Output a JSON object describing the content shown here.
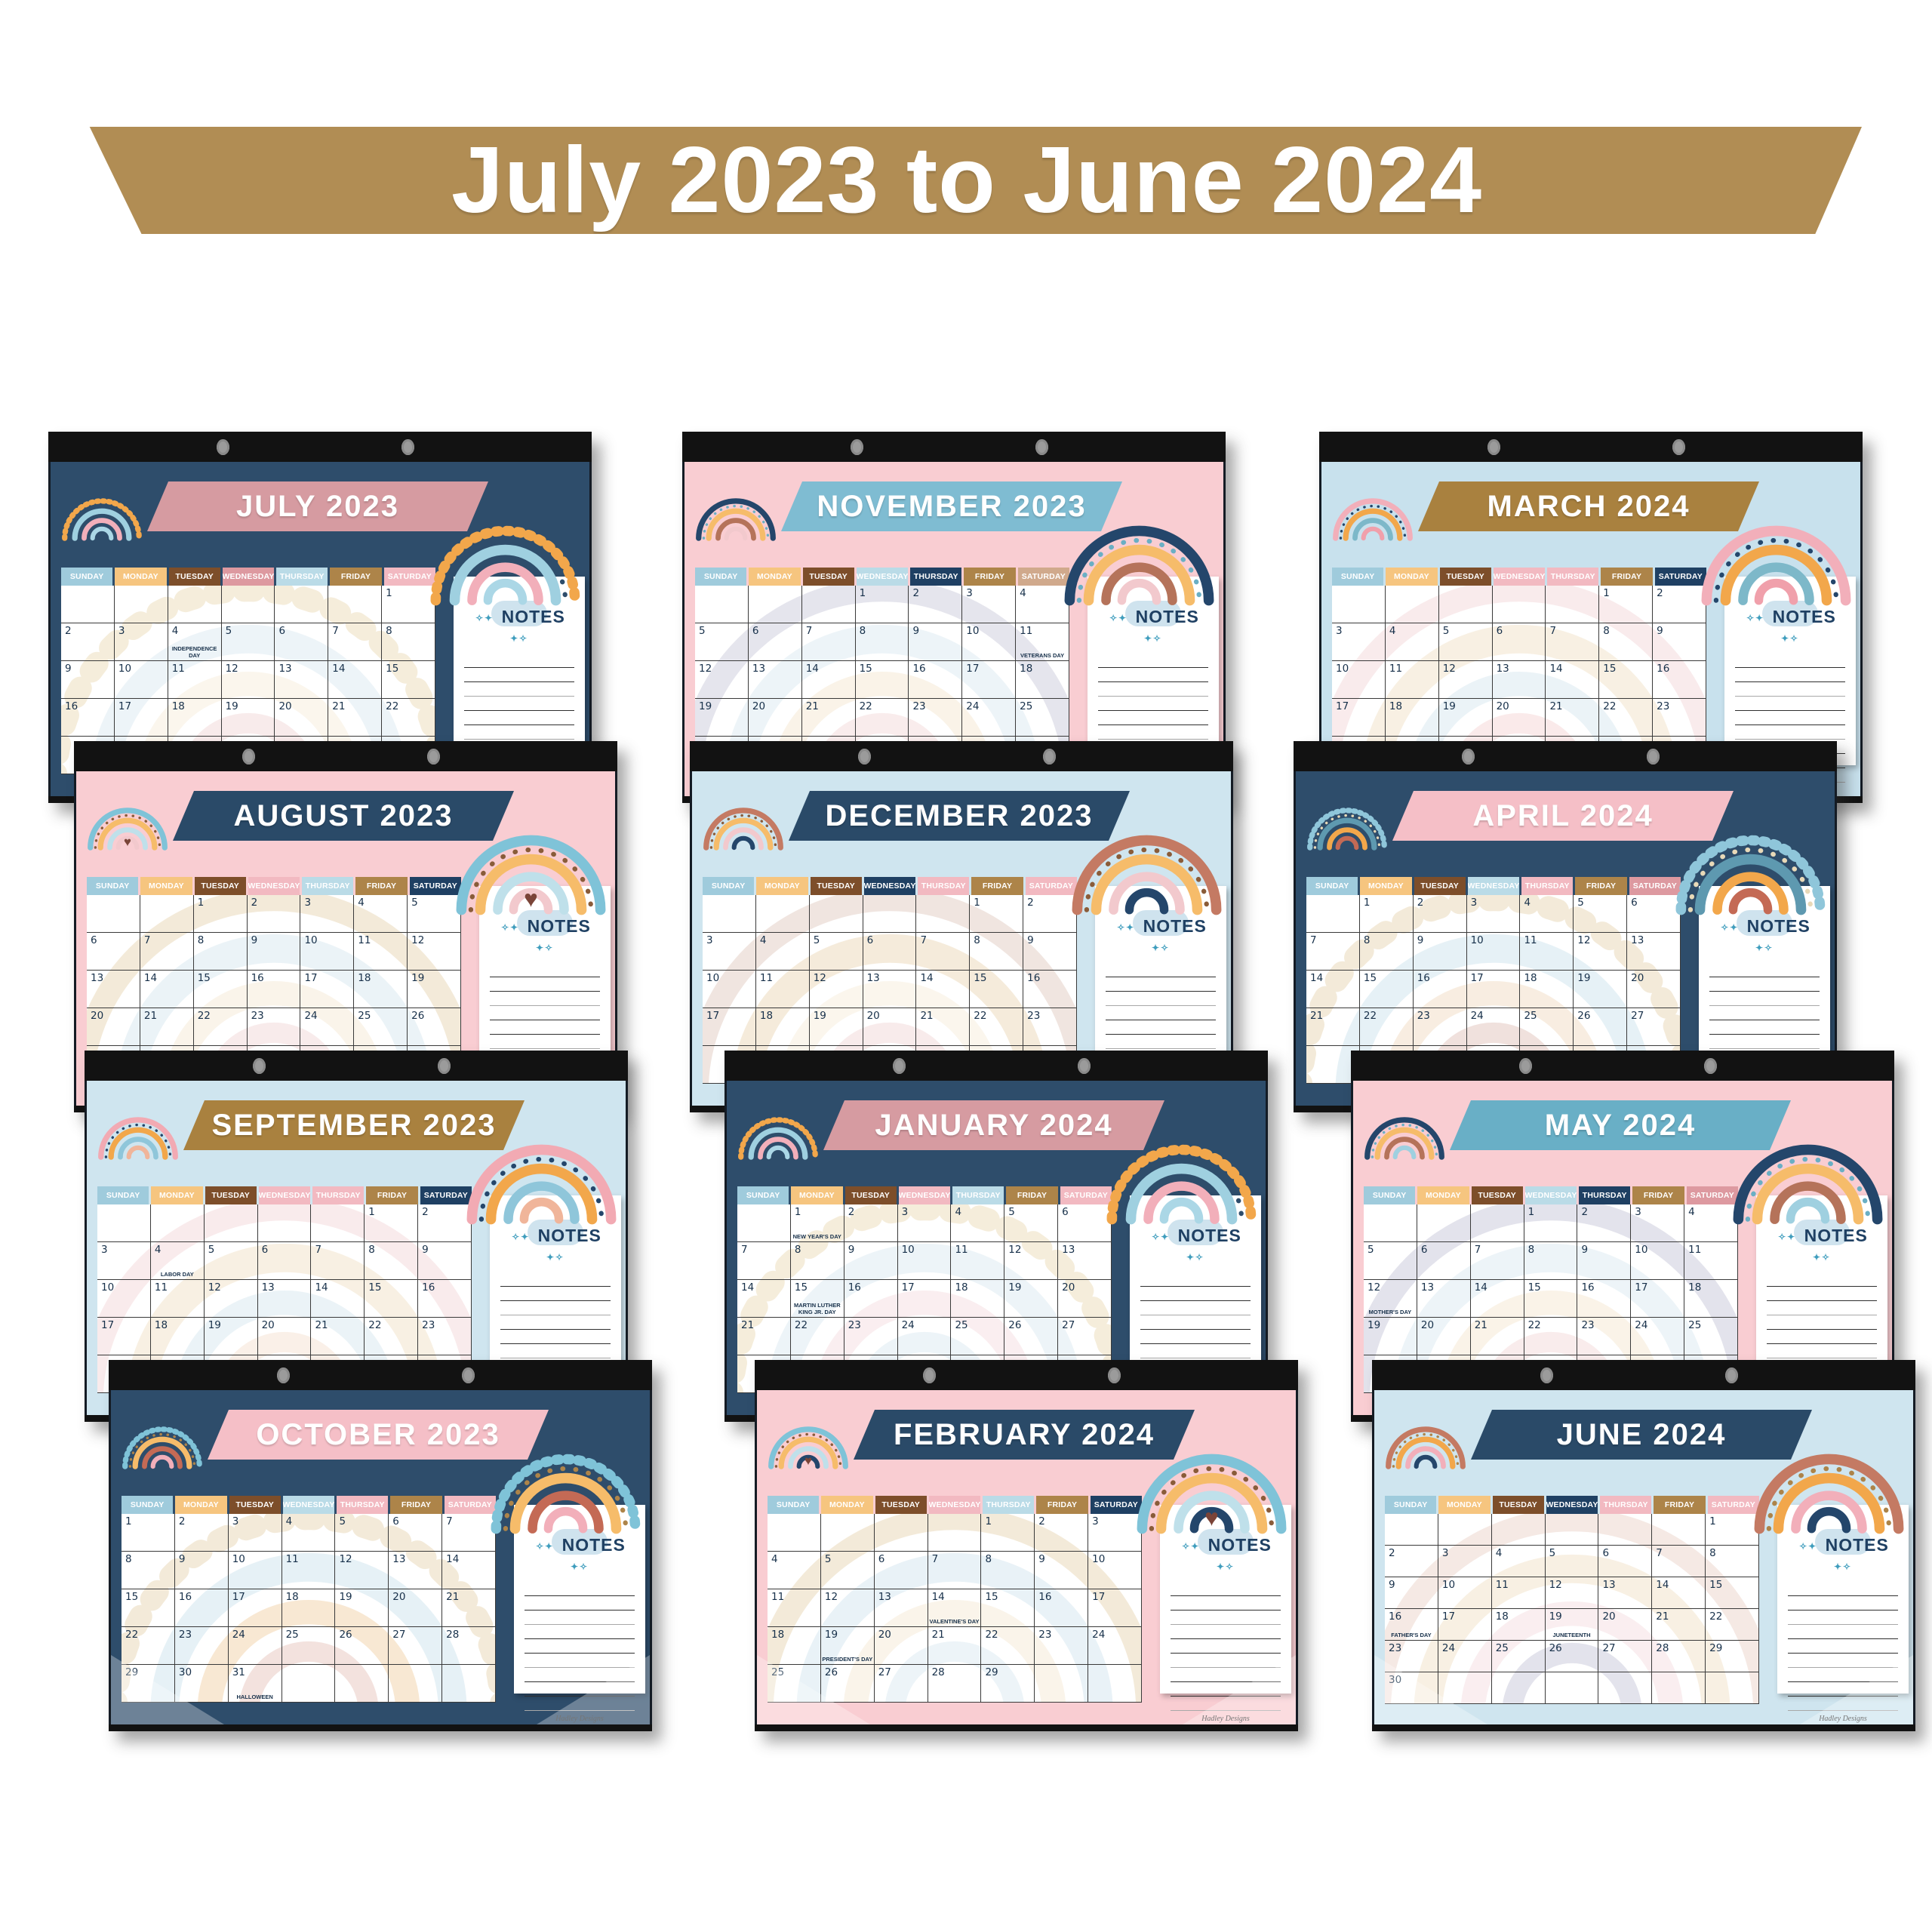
{
  "banner": {
    "text": "July 2023 to June 2024",
    "bg": "#b18d54",
    "text_color": "#ffffff"
  },
  "day_labels": [
    "SUNDAY",
    "MONDAY",
    "TUESDAY",
    "WEDNESDAY",
    "THURSDAY",
    "FRIDAY",
    "SATURDAY"
  ],
  "notes_label": "NOTES",
  "brand": "Hadley Designs",
  "icons": {
    "sparkles_left": "✧✦",
    "sparkles_right": "✦✧",
    "grommet": "binder-grommet",
    "heart": "♥"
  },
  "colors": {
    "navy_bg": "#2e4d6b",
    "pink_bg": "#f9cdd2",
    "blue_bg": "#cfe5ef",
    "strip": "#121212",
    "grid_line": "#3a3a3a",
    "date_text": "#17304a",
    "notes_text": "#1f4063"
  },
  "calendars": [
    {
      "id": "july-2023",
      "title": "JULY 2023",
      "row": 0,
      "col": 0,
      "bg": "#2e4d6b",
      "banner_bg": "#d69ba1",
      "header_colors": [
        "#9fcbdc",
        "#f6c57f",
        "#7d4e2a",
        "#dd99a0",
        "#badbe7",
        "#ad8449",
        "#f2b9c1"
      ],
      "rainbow": {
        "outer": "#f2a74b",
        "a2": "#9fd0e0",
        "a3": "#f2afba",
        "a4": "#abd7e6",
        "dots": "#2e4d6b",
        "dash": true,
        "heart": null
      },
      "watermark": [
        "#ecdcb9",
        "#dceaf2",
        "#f8eedd",
        "#f3d9d9"
      ],
      "weeks": [
        [
          "",
          "",
          "",
          "",
          "",
          "",
          "1"
        ],
        [
          "2",
          "3",
          "4",
          "5",
          "6",
          "7",
          "8"
        ],
        [
          "9",
          "10",
          "11",
          "12",
          "13",
          "14",
          "15"
        ],
        [
          "16",
          "17",
          "18",
          "19",
          "20",
          "21",
          "22"
        ]
      ],
      "holidays": {
        "4": "INDEPENDENCE DAY"
      },
      "full": false,
      "six": false
    },
    {
      "id": "november-2023",
      "title": "NOVEMBER 2023",
      "row": 0,
      "col": 1,
      "bg": "#f9cdd2",
      "banner_bg": "#7fbcd2",
      "header_colors": [
        "#9fcbdc",
        "#f6c57f",
        "#7d4e2a",
        "#badbe7",
        "#1f4063",
        "#ad8449",
        "#d0a98c"
      ],
      "rainbow": {
        "outer": "#24466b",
        "a2": "#f6bc6a",
        "a3": "#b5735a",
        "a4": "#f2c9cd",
        "dots": "#6aafc4",
        "dash": false,
        "heart": null
      },
      "watermark": [
        "#cdccdc",
        "#dcebf3",
        "#f6e8d2",
        "#f5dada"
      ],
      "weeks": [
        [
          "",
          "",
          "",
          "1",
          "2",
          "3",
          "4"
        ],
        [
          "5",
          "6",
          "7",
          "8",
          "9",
          "10",
          "11"
        ],
        [
          "12",
          "13",
          "14",
          "15",
          "16",
          "17",
          "18"
        ],
        [
          "19",
          "20",
          "21",
          "22",
          "23",
          "24",
          "25"
        ]
      ],
      "holidays": {
        "11": "VETERANS DAY"
      },
      "full": false,
      "six": false
    },
    {
      "id": "march-2024",
      "title": "MARCH 2024",
      "row": 0,
      "col": 2,
      "bg": "#c8e1ed",
      "banner_bg": "#a9813f",
      "header_colors": [
        "#9fcbdc",
        "#f6c57f",
        "#7d4e2a",
        "#f2b9c1",
        "#f2b9c1",
        "#ad8449",
        "#1f4063"
      ],
      "rainbow": {
        "outer": "#f2afba",
        "a2": "#f2a74b",
        "a3": "#7db8c9",
        "a4": "#f0a0ab",
        "dots": "#24466b",
        "dash": false,
        "heart": null
      },
      "watermark": [
        "#f5d8da",
        "#f3e3c8",
        "#d9e9f1",
        "#f7d7d7"
      ],
      "weeks": [
        [
          "",
          "",
          "",
          "",
          "",
          "1",
          "2"
        ],
        [
          "3",
          "4",
          "5",
          "6",
          "7",
          "8",
          "9"
        ],
        [
          "10",
          "11",
          "12",
          "13",
          "14",
          "15",
          "16"
        ],
        [
          "17",
          "18",
          "19",
          "20",
          "21",
          "22",
          "23"
        ]
      ],
      "holidays": {},
      "full": false,
      "six": false
    },
    {
      "id": "august-2023",
      "title": "AUGUST 2023",
      "row": 1,
      "col": 0,
      "bg": "#f9cdd2",
      "banner_bg": "#2a4a68",
      "header_colors": [
        "#9fcbdc",
        "#f6c57f",
        "#7d4e2a",
        "#f2b9c1",
        "#badbe7",
        "#ad8449",
        "#1f4063"
      ],
      "rainbow": {
        "outer": "#7fc3d8",
        "a2": "#f6bc6a",
        "a3": "#bfe0ea",
        "a4": "#f2c9cd",
        "dots": "#8a5c39",
        "dash": false,
        "heart": "#7a4438"
      },
      "watermark": [
        "#e9d7b4",
        "#d9e9f1",
        "#f7ead6",
        "#f3d9d9"
      ],
      "weeks": [
        [
          "",
          "",
          "1",
          "2",
          "3",
          "4",
          "5"
        ],
        [
          "6",
          "7",
          "8",
          "9",
          "10",
          "11",
          "12"
        ],
        [
          "13",
          "14",
          "15",
          "16",
          "17",
          "18",
          "19"
        ],
        [
          "20",
          "21",
          "22",
          "23",
          "24",
          "25",
          "26"
        ]
      ],
      "holidays": {},
      "full": false,
      "six": false
    },
    {
      "id": "december-2023",
      "title": "DECEMBER 2023",
      "row": 1,
      "col": 1,
      "bg": "#cfe5ef",
      "banner_bg": "#2a4a68",
      "header_colors": [
        "#9fcbdc",
        "#f6c57f",
        "#7d4e2a",
        "#1f4063",
        "#f2b9c1",
        "#ad8449",
        "#f2b9c1"
      ],
      "rainbow": {
        "outer": "#c47a63",
        "a2": "#f6bc6a",
        "a3": "#f2c9cd",
        "a4": "#24466b",
        "dots": "#8a5c39",
        "dash": false,
        "heart": null
      },
      "watermark": [
        "#e3cdc3",
        "#ecd9b8",
        "#f8eedd",
        "#f3d9d9"
      ],
      "weeks": [
        [
          "",
          "",
          "",
          "",
          "",
          "1",
          "2"
        ],
        [
          "3",
          "4",
          "5",
          "6",
          "7",
          "8",
          "9"
        ],
        [
          "10",
          "11",
          "12",
          "13",
          "14",
          "15",
          "16"
        ],
        [
          "17",
          "18",
          "19",
          "20",
          "21",
          "22",
          "23"
        ]
      ],
      "holidays": {},
      "full": false,
      "six": false
    },
    {
      "id": "april-2024",
      "title": "APRIL 2024",
      "row": 1,
      "col": 2,
      "bg": "#2e4d6b",
      "banner_bg": "#f5bfc7",
      "header_colors": [
        "#9fcbdc",
        "#f6c57f",
        "#7d4e2a",
        "#badbe7",
        "#f2b9c1",
        "#ad8449",
        "#dd99a0"
      ],
      "rainbow": {
        "outer": "#8fc6da",
        "a2": "#5e99b0",
        "a3": "#f2a74b",
        "a4": "#c46a55",
        "dots": "#e8d9b8",
        "dash": true,
        "heart": null
      },
      "watermark": [
        "#e9d7b4",
        "#cfe4ee",
        "#f3ddc4",
        "#e3c4bc"
      ],
      "weeks": [
        [
          "",
          "1",
          "2",
          "3",
          "4",
          "5",
          "6"
        ],
        [
          "7",
          "8",
          "9",
          "10",
          "11",
          "12",
          "13"
        ],
        [
          "14",
          "15",
          "16",
          "17",
          "18",
          "19",
          "20"
        ],
        [
          "21",
          "22",
          "23",
          "24",
          "25",
          "26",
          "27"
        ]
      ],
      "holidays": {},
      "full": false,
      "six": false
    },
    {
      "id": "september-2023",
      "title": "SEPTEMBER 2023",
      "row": 2,
      "col": 0,
      "bg": "#cfe5ef",
      "banner_bg": "#a9813f",
      "header_colors": [
        "#9fcbdc",
        "#f6c57f",
        "#7d4e2a",
        "#f2b9c1",
        "#f2b9c1",
        "#ad8449",
        "#1f4063"
      ],
      "rainbow": {
        "outer": "#f2aab3",
        "a2": "#f2a74b",
        "a3": "#8fc6da",
        "a4": "#f0b59a",
        "dots": "#24466b",
        "dash": false,
        "heart": null
      },
      "watermark": [
        "#f5d8da",
        "#f3e3c8",
        "#d9e9f1",
        "#f7e3d3"
      ],
      "weeks": [
        [
          "",
          "",
          "",
          "",
          "",
          "1",
          "2"
        ],
        [
          "3",
          "4",
          "5",
          "6",
          "7",
          "8",
          "9"
        ],
        [
          "10",
          "11",
          "12",
          "13",
          "14",
          "15",
          "16"
        ],
        [
          "17",
          "18",
          "19",
          "20",
          "21",
          "22",
          "23"
        ]
      ],
      "holidays": {
        "4": "LABOR DAY"
      },
      "full": false,
      "six": false
    },
    {
      "id": "january-2024",
      "title": "JANUARY 2024",
      "row": 2,
      "col": 1,
      "bg": "#2e4d6b",
      "banner_bg": "#d69ba1",
      "header_colors": [
        "#9fcbdc",
        "#f6c57f",
        "#7d4e2a",
        "#f2b9c1",
        "#badbe7",
        "#ad8449",
        "#f2b9c1"
      ],
      "rainbow": {
        "outer": "#f2a74b",
        "a2": "#9fd0e0",
        "a3": "#f2afba",
        "a4": "#abd7e6",
        "dots": "#2e4d6b",
        "dash": true,
        "heart": null
      },
      "watermark": [
        "#ecdcb9",
        "#dceaf2",
        "#f6dfe2",
        "#dcebf3"
      ],
      "weeks": [
        [
          "",
          "1",
          "2",
          "3",
          "4",
          "5",
          "6"
        ],
        [
          "7",
          "8",
          "9",
          "10",
          "11",
          "12",
          "13"
        ],
        [
          "14",
          "15",
          "16",
          "17",
          "18",
          "19",
          "20"
        ],
        [
          "21",
          "22",
          "23",
          "24",
          "25",
          "26",
          "27"
        ]
      ],
      "holidays": {
        "1": "NEW YEAR'S DAY",
        "15": "MARTIN LUTHER KING JR. DAY"
      },
      "full": false,
      "six": false
    },
    {
      "id": "may-2024",
      "title": "MAY 2024",
      "row": 2,
      "col": 2,
      "bg": "#f9cdd2",
      "banner_bg": "#69afc6",
      "header_colors": [
        "#9fcbdc",
        "#f6c57f",
        "#7d4e2a",
        "#badbe7",
        "#1f4063",
        "#ad8449",
        "#dd99a0"
      ],
      "rainbow": {
        "outer": "#24466b",
        "a2": "#f6bc6a",
        "a3": "#b5735a",
        "a4": "#9fd0e0",
        "dots": "#6aafc4",
        "dash": false,
        "heart": null
      },
      "watermark": [
        "#c9c9da",
        "#dcebf3",
        "#f6e8d2",
        "#f5dada"
      ],
      "weeks": [
        [
          "",
          "",
          "",
          "1",
          "2",
          "3",
          "4"
        ],
        [
          "5",
          "6",
          "7",
          "8",
          "9",
          "10",
          "11"
        ],
        [
          "12",
          "13",
          "14",
          "15",
          "16",
          "17",
          "18"
        ],
        [
          "19",
          "20",
          "21",
          "22",
          "23",
          "24",
          "25"
        ]
      ],
      "holidays": {
        "12": "MOTHER'S DAY"
      },
      "full": false,
      "six": false
    },
    {
      "id": "october-2023",
      "title": "OCTOBER 2023",
      "row": 3,
      "col": 0,
      "bg": "#2e4d6b",
      "banner_bg": "#f5bfc7",
      "header_colors": [
        "#9fcbdc",
        "#f6c57f",
        "#7d4e2a",
        "#badbe7",
        "#f2b9c1",
        "#ad8449",
        "#f2b9c1"
      ],
      "rainbow": {
        "outer": "#7fc3d8",
        "a2": "#f6bc6a",
        "a3": "#c46a55",
        "a4": "#f2afba",
        "dots": "#ad8449",
        "dash": true,
        "heart": null
      },
      "watermark": [
        "#e9d7b4",
        "#cfe4ee",
        "#f3d2a9",
        "#e8c7bf"
      ],
      "weeks": [
        [
          "1",
          "2",
          "3",
          "4",
          "5",
          "6",
          "7"
        ],
        [
          "8",
          "9",
          "10",
          "11",
          "12",
          "13",
          "14"
        ],
        [
          "15",
          "16",
          "17",
          "18",
          "19",
          "20",
          "21"
        ],
        [
          "22",
          "23",
          "24",
          "25",
          "26",
          "27",
          "28"
        ],
        [
          "29",
          "30",
          "31",
          "",
          "",
          "",
          ""
        ]
      ],
      "holidays": {
        "31": "HALLOWEEN"
      },
      "full": true,
      "six": false
    },
    {
      "id": "february-2024",
      "title": "FEBRUARY 2024",
      "row": 3,
      "col": 1,
      "bg": "#f9cdd2",
      "banner_bg": "#2a4a68",
      "header_colors": [
        "#9fcbdc",
        "#f6c57f",
        "#7d4e2a",
        "#f2b9c1",
        "#badbe7",
        "#ad8449",
        "#1f4063"
      ],
      "rainbow": {
        "outer": "#7fc3d8",
        "a2": "#f6bc6a",
        "a3": "#bfe0ea",
        "a4": "#24466b",
        "dots": "#8a5c39",
        "dash": false,
        "heart": "#7a4438"
      },
      "watermark": [
        "#e9d7b4",
        "#d4e6f0",
        "#f7ead6",
        "#dcebf3"
      ],
      "weeks": [
        [
          "",
          "",
          "",
          "",
          "1",
          "2",
          "3"
        ],
        [
          "4",
          "5",
          "6",
          "7",
          "8",
          "9",
          "10"
        ],
        [
          "11",
          "12",
          "13",
          "14",
          "15",
          "16",
          "17"
        ],
        [
          "18",
          "19",
          "20",
          "21",
          "22",
          "23",
          "24"
        ],
        [
          "25",
          "26",
          "27",
          "28",
          "29",
          "",
          ""
        ]
      ],
      "holidays": {
        "14": "VALENTINE'S DAY",
        "19": "PRESIDENT'S DAY"
      },
      "full": true,
      "six": false
    },
    {
      "id": "june-2024",
      "title": "JUNE 2024",
      "row": 3,
      "col": 2,
      "bg": "#cfe5ef",
      "banner_bg": "#2a4a68",
      "header_colors": [
        "#9fcbdc",
        "#f6c57f",
        "#7d4e2a",
        "#1f4063",
        "#f2b9c1",
        "#ad8449",
        "#f2b9c1"
      ],
      "rainbow": {
        "outer": "#c47a63",
        "a2": "#f2a74b",
        "a3": "#f2afba",
        "a4": "#24466b",
        "dots": "#ad8449",
        "dash": false,
        "heart": null
      },
      "watermark": [
        "#ecd4cb",
        "#f3e3c8",
        "#f6dfe2",
        "#c9c9da"
      ],
      "weeks": [
        [
          "",
          "",
          "",
          "",
          "",
          "",
          "1"
        ],
        [
          "2",
          "3",
          "4",
          "5",
          "6",
          "7",
          "8"
        ],
        [
          "9",
          "10",
          "11",
          "12",
          "13",
          "14",
          "15"
        ],
        [
          "16",
          "17",
          "18",
          "19",
          "20",
          "21",
          "22"
        ],
        [
          "23",
          "24",
          "25",
          "26",
          "27",
          "28",
          "29"
        ],
        [
          "30",
          "",
          "",
          "",
          "",
          "",
          ""
        ]
      ],
      "holidays": {
        "16": "FATHER'S DAY",
        "19": "JUNETEENTH"
      },
      "full": true,
      "six": true
    }
  ]
}
